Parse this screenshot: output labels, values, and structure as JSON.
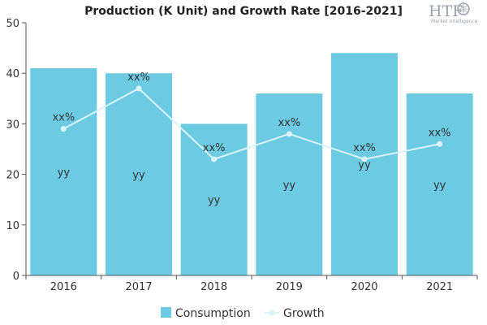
{
  "chart_data": {
    "type": "bar",
    "title": "Production (K Unit) and Growth Rate [2016-2021]",
    "categories": [
      "2016",
      "2017",
      "2018",
      "2019",
      "2020",
      "2021"
    ],
    "series": [
      {
        "name": "Consumption",
        "type": "bar",
        "values": [
          41,
          40,
          30,
          36,
          44,
          36
        ],
        "data_labels": [
          "yy",
          "yy",
          "yy",
          "yy",
          "yy",
          "yy"
        ],
        "color": "#6ccbe3"
      },
      {
        "name": "Growth",
        "type": "line",
        "values": [
          29,
          37,
          23,
          28,
          23,
          26
        ],
        "data_labels": [
          "xx%",
          "xx%",
          "xx%",
          "xx%",
          "xx%",
          "xx%"
        ],
        "color": "#d9f4fb"
      }
    ],
    "ylim": [
      0,
      50
    ],
    "yticks": [
      0,
      10,
      20,
      30,
      40,
      50
    ],
    "grid": false,
    "legend": "bottom-center"
  },
  "watermark": {
    "logo_text": "HTF",
    "logo_subtext": "Market Intelligence"
  }
}
